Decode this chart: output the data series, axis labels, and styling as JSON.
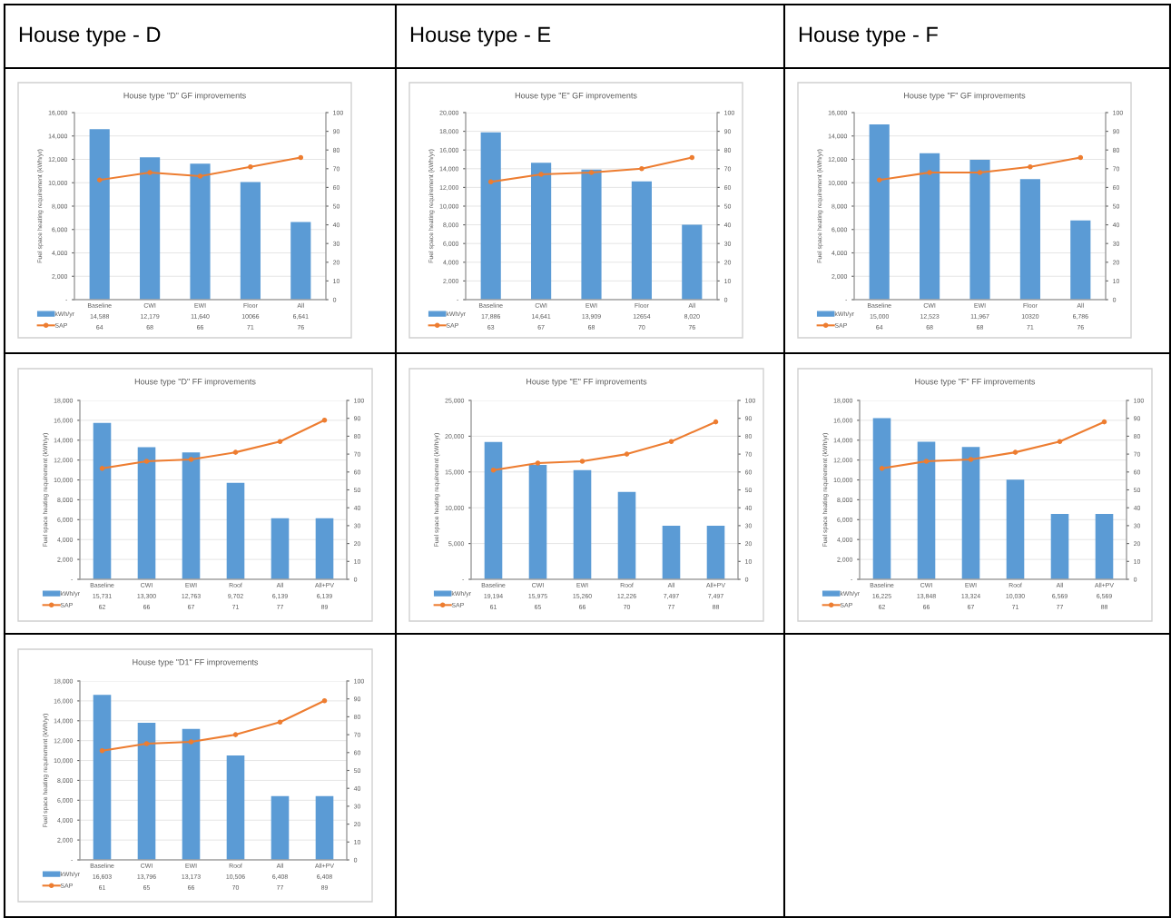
{
  "chart_data": [
    {
      "type": "bar",
      "title": "House type \"D\" GF improvements",
      "annotations": [
        "House type - D"
      ],
      "ylabel": "Fuel space heating requirement (kWh/yr)",
      "categories": [
        "Baseline",
        "CWI",
        "EWI",
        "Floor",
        "All"
      ],
      "series": [
        {
          "name": "kWh/yr",
          "color": "#5b9bd5",
          "values": [
            14588,
            12179,
            11640,
            10066,
            6641
          ],
          "value_labels": [
            "14,588",
            "12,179",
            "11,640",
            "10066",
            "6,641"
          ]
        },
        {
          "name": "SAP",
          "type": "line",
          "axis": "y2",
          "marker": "circle",
          "color": "#ed7d31",
          "values": [
            64,
            68,
            66,
            71,
            76
          ],
          "value_labels": [
            "64",
            "68",
            "66",
            "71",
            "76"
          ]
        }
      ],
      "ylim": [
        0,
        16000
      ],
      "yticks": [
        {
          "value": 0,
          "label": "-"
        },
        {
          "value": 2000,
          "label": "2,000"
        },
        {
          "value": 4000,
          "label": "4,000"
        },
        {
          "value": 6000,
          "label": "6,000"
        },
        {
          "value": 8000,
          "label": "8,000"
        },
        {
          "value": 10000,
          "label": "10,000"
        },
        {
          "value": 12000,
          "label": "12,000"
        },
        {
          "value": 14000,
          "label": "14,000"
        },
        {
          "value": 16000,
          "label": "16,000"
        }
      ],
      "y2lim": [
        0,
        100
      ],
      "y2ticks": [
        0,
        10,
        20,
        30,
        40,
        50,
        60,
        70,
        80,
        90,
        100
      ],
      "grid": "y",
      "legend": "bottom"
    },
    {
      "type": "bar",
      "title": "House type \"E\" GF improvements",
      "annotations": [
        "House type - E"
      ],
      "ylabel": "Fuel space heating requirement (kWh/yr)",
      "categories": [
        "Baseline",
        "CWI",
        "EWI",
        "Floor",
        "All"
      ],
      "series": [
        {
          "name": "kWh/yr",
          "color": "#5b9bd5",
          "values": [
            17886,
            14641,
            13909,
            12654,
            8020
          ],
          "value_labels": [
            "17,886",
            "14,641",
            "13,909",
            "12654",
            "8,020"
          ]
        },
        {
          "name": "SAP",
          "type": "line",
          "axis": "y2",
          "marker": "circle",
          "color": "#ed7d31",
          "values": [
            63,
            67,
            68,
            70,
            76
          ],
          "value_labels": [
            "63",
            "67",
            "68",
            "70",
            "76"
          ]
        }
      ],
      "ylim": [
        0,
        20000
      ],
      "yticks": [
        {
          "value": 0,
          "label": "-"
        },
        {
          "value": 2000,
          "label": "2,000"
        },
        {
          "value": 4000,
          "label": "4,000"
        },
        {
          "value": 6000,
          "label": "6,000"
        },
        {
          "value": 8000,
          "label": "8,000"
        },
        {
          "value": 10000,
          "label": "10,000"
        },
        {
          "value": 12000,
          "label": "12,000"
        },
        {
          "value": 14000,
          "label": "14,000"
        },
        {
          "value": 16000,
          "label": "16,000"
        },
        {
          "value": 18000,
          "label": "18,000"
        },
        {
          "value": 20000,
          "label": "20,000"
        }
      ],
      "y2lim": [
        0,
        100
      ],
      "y2ticks": [
        0,
        10,
        20,
        30,
        40,
        50,
        60,
        70,
        80,
        90,
        100
      ],
      "grid": "y",
      "legend": "bottom"
    },
    {
      "type": "bar",
      "title": "House type \"F\" GF improvements",
      "annotations": [
        "House type - F"
      ],
      "ylabel": "Fuel space heating requirement (kWh/yr)",
      "categories": [
        "Baseline",
        "CWI",
        "EWI",
        "Floor",
        "All"
      ],
      "series": [
        {
          "name": "kWh/yr",
          "color": "#5b9bd5",
          "values": [
            15000,
            12523,
            11967,
            10320,
            6786
          ],
          "value_labels": [
            "15,000",
            "12,523",
            "11,967",
            "10320",
            "6,786"
          ]
        },
        {
          "name": "SAP",
          "type": "line",
          "axis": "y2",
          "marker": "circle",
          "color": "#ed7d31",
          "values": [
            64,
            68,
            68,
            71,
            76
          ],
          "value_labels": [
            "64",
            "68",
            "68",
            "71",
            "76"
          ]
        }
      ],
      "ylim": [
        0,
        16000
      ],
      "yticks": [
        {
          "value": 0,
          "label": "-"
        },
        {
          "value": 2000,
          "label": "2,000"
        },
        {
          "value": 4000,
          "label": "4,000"
        },
        {
          "value": 6000,
          "label": "6,000"
        },
        {
          "value": 8000,
          "label": "8,000"
        },
        {
          "value": 10000,
          "label": "10,000"
        },
        {
          "value": 12000,
          "label": "12,000"
        },
        {
          "value": 14000,
          "label": "14,000"
        },
        {
          "value": 16000,
          "label": "16,000"
        }
      ],
      "y2lim": [
        0,
        100
      ],
      "y2ticks": [
        0,
        10,
        20,
        30,
        40,
        50,
        60,
        70,
        80,
        90,
        100
      ],
      "grid": "y",
      "legend": "bottom"
    },
    {
      "type": "bar",
      "title": "House type \"D\" FF improvements",
      "ylabel": "Fuel space heating requirement (kWh/yr)",
      "categories": [
        "Baseline",
        "CWI",
        "EWI",
        "Roof",
        "All",
        "All+PV"
      ],
      "series": [
        {
          "name": "kWh/yr",
          "color": "#5b9bd5",
          "values": [
            15731,
            13300,
            12763,
            9702,
            6139,
            6139
          ],
          "value_labels": [
            "15,731",
            "13,300",
            "12,763",
            "9,702",
            "6,139",
            "6,139"
          ]
        },
        {
          "name": "SAP",
          "type": "line",
          "axis": "y2",
          "marker": "circle",
          "color": "#ed7d31",
          "values": [
            62,
            66,
            67,
            71,
            77,
            89
          ],
          "value_labels": [
            "62",
            "66",
            "67",
            "71",
            "77",
            "89"
          ]
        }
      ],
      "ylim": [
        0,
        18000
      ],
      "yticks": [
        {
          "value": 0,
          "label": "-"
        },
        {
          "value": 2000,
          "label": "2,000"
        },
        {
          "value": 4000,
          "label": "4,000"
        },
        {
          "value": 6000,
          "label": "6,000"
        },
        {
          "value": 8000,
          "label": "8,000"
        },
        {
          "value": 10000,
          "label": "10,000"
        },
        {
          "value": 12000,
          "label": "12,000"
        },
        {
          "value": 14000,
          "label": "14,000"
        },
        {
          "value": 16000,
          "label": "16,000"
        },
        {
          "value": 18000,
          "label": "18,000"
        }
      ],
      "y2lim": [
        0,
        100
      ],
      "y2ticks": [
        0,
        10,
        20,
        30,
        40,
        50,
        60,
        70,
        80,
        90,
        100
      ],
      "grid": "y",
      "legend": "bottom"
    },
    {
      "type": "bar",
      "title": "House type \"E\" FF improvements",
      "ylabel": "Fuel space heating requirement (kWh/yr)",
      "categories": [
        "Baseline",
        "CWI",
        "EWI",
        "Roof",
        "All",
        "All+PV"
      ],
      "series": [
        {
          "name": "kWh/yr",
          "color": "#5b9bd5",
          "values": [
            19194,
            15975,
            15260,
            12226,
            7497,
            7497
          ],
          "value_labels": [
            "19,194",
            "15,975",
            "15,260",
            "12,226",
            "7,497",
            "7,497"
          ]
        },
        {
          "name": "SAP",
          "type": "line",
          "axis": "y2",
          "marker": "circle",
          "color": "#ed7d31",
          "values": [
            61,
            65,
            66,
            70,
            77,
            88
          ],
          "value_labels": [
            "61",
            "65",
            "66",
            "70",
            "77",
            "88"
          ]
        }
      ],
      "ylim": [
        0,
        25000
      ],
      "yticks": [
        {
          "value": 0,
          "label": "-"
        },
        {
          "value": 5000,
          "label": "5,000"
        },
        {
          "value": 10000,
          "label": "10,000"
        },
        {
          "value": 15000,
          "label": "15,000"
        },
        {
          "value": 20000,
          "label": "20,000"
        },
        {
          "value": 25000,
          "label": "25,000"
        }
      ],
      "y2lim": [
        0,
        100
      ],
      "y2ticks": [
        0,
        10,
        20,
        30,
        40,
        50,
        60,
        70,
        80,
        90,
        100
      ],
      "grid": "y",
      "legend": "bottom"
    },
    {
      "type": "bar",
      "title": "House type \"F\" FF improvements",
      "ylabel": "Fuel space heating requirement (kWh/yr)",
      "categories": [
        "Baseline",
        "CWI",
        "EWI",
        "Roof",
        "All",
        "All+PV"
      ],
      "series": [
        {
          "name": "kWh/yr",
          "color": "#5b9bd5",
          "values": [
            16225,
            13848,
            13324,
            10030,
            6569,
            6569
          ],
          "value_labels": [
            "16,225",
            "13,848",
            "13,324",
            "10,030",
            "6,569",
            "6,569"
          ]
        },
        {
          "name": "SAP",
          "type": "line",
          "axis": "y2",
          "marker": "circle",
          "color": "#ed7d31",
          "values": [
            62,
            66,
            67,
            71,
            77,
            88
          ],
          "value_labels": [
            "62",
            "66",
            "67",
            "71",
            "77",
            "88"
          ]
        }
      ],
      "ylim": [
        0,
        18000
      ],
      "yticks": [
        {
          "value": 0,
          "label": "-"
        },
        {
          "value": 2000,
          "label": "2,000"
        },
        {
          "value": 4000,
          "label": "4,000"
        },
        {
          "value": 6000,
          "label": "6,000"
        },
        {
          "value": 8000,
          "label": "8,000"
        },
        {
          "value": 10000,
          "label": "10,000"
        },
        {
          "value": 12000,
          "label": "12,000"
        },
        {
          "value": 14000,
          "label": "14,000"
        },
        {
          "value": 16000,
          "label": "16,000"
        },
        {
          "value": 18000,
          "label": "18,000"
        }
      ],
      "y2lim": [
        0,
        100
      ],
      "y2ticks": [
        0,
        10,
        20,
        30,
        40,
        50,
        60,
        70,
        80,
        90,
        100
      ],
      "grid": "y",
      "legend": "bottom"
    },
    {
      "type": "bar",
      "title": "House type \"D1\" FF improvements",
      "ylabel": "Fuel space heating requirement (kWh/yr)",
      "categories": [
        "Baseline",
        "CWI",
        "EWI",
        "Roof",
        "All",
        "All+PV"
      ],
      "series": [
        {
          "name": "kWh/yr",
          "color": "#5b9bd5",
          "values": [
            16603,
            13796,
            13173,
            10506,
            6408,
            6408
          ],
          "value_labels": [
            "16,603",
            "13,796",
            "13,173",
            "10,506",
            "6,408",
            "6,408"
          ]
        },
        {
          "name": "SAP",
          "type": "line",
          "axis": "y2",
          "marker": "circle",
          "color": "#ed7d31",
          "values": [
            61,
            65,
            66,
            70,
            77,
            89
          ],
          "value_labels": [
            "61",
            "65",
            "66",
            "70",
            "77",
            "89"
          ]
        }
      ],
      "ylim": [
        0,
        18000
      ],
      "yticks": [
        {
          "value": 0,
          "label": "-"
        },
        {
          "value": 2000,
          "label": "2,000"
        },
        {
          "value": 4000,
          "label": "4,000"
        },
        {
          "value": 6000,
          "label": "6,000"
        },
        {
          "value": 8000,
          "label": "8,000"
        },
        {
          "value": 10000,
          "label": "10,000"
        },
        {
          "value": 12000,
          "label": "12,000"
        },
        {
          "value": 14000,
          "label": "14,000"
        },
        {
          "value": 16000,
          "label": "16,000"
        },
        {
          "value": 18000,
          "label": "18,000"
        }
      ],
      "y2lim": [
        0,
        100
      ],
      "y2ticks": [
        0,
        10,
        20,
        30,
        40,
        50,
        60,
        70,
        80,
        90,
        100
      ],
      "grid": "y",
      "legend": "bottom"
    }
  ]
}
